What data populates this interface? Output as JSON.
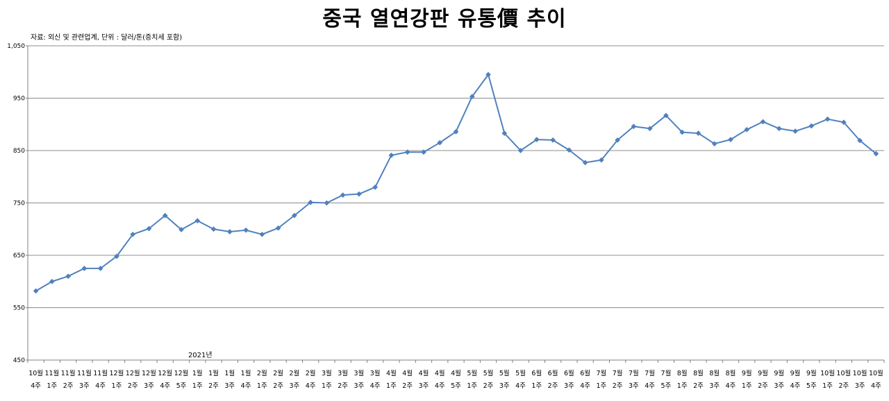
{
  "chart_data": {
    "type": "line",
    "title": "중국 열연강판 유통價 추이",
    "source_note": "자료: 외신 및 관련업계, 단위 : 달러/톤(증치세 포함)",
    "year_annotation": "2021년",
    "ylim": [
      450,
      1050
    ],
    "yticks": [
      450,
      550,
      650,
      750,
      850,
      950,
      1050
    ],
    "ytick_labels": [
      "450",
      "550",
      "650",
      "750",
      "850",
      "950",
      "1,050"
    ],
    "grid": true,
    "line_color": "#4f81bd",
    "categories": [
      [
        "10월",
        "4주"
      ],
      [
        "11월",
        "1주"
      ],
      [
        "11월",
        "2주"
      ],
      [
        "11월",
        "3주"
      ],
      [
        "11월",
        "4주"
      ],
      [
        "12월",
        "1주"
      ],
      [
        "12월",
        "2주"
      ],
      [
        "12월",
        "3주"
      ],
      [
        "12월",
        "4주"
      ],
      [
        "12월",
        "5주"
      ],
      [
        "1월",
        "1주"
      ],
      [
        "1월",
        "2주"
      ],
      [
        "1월",
        "3주"
      ],
      [
        "1월",
        "4주"
      ],
      [
        "2월",
        "1주"
      ],
      [
        "2월",
        "2주"
      ],
      [
        "2월",
        "3주"
      ],
      [
        "2월",
        "4주"
      ],
      [
        "3월",
        "1주"
      ],
      [
        "3월",
        "2주"
      ],
      [
        "3월",
        "3주"
      ],
      [
        "3월",
        "4주"
      ],
      [
        "4월",
        "1주"
      ],
      [
        "4월",
        "2주"
      ],
      [
        "4월",
        "3주"
      ],
      [
        "4월",
        "4주"
      ],
      [
        "4월",
        "5주"
      ],
      [
        "5월",
        "1주"
      ],
      [
        "5월",
        "2주"
      ],
      [
        "5월",
        "3주"
      ],
      [
        "5월",
        "4주"
      ],
      [
        "6월",
        "1주"
      ],
      [
        "6월",
        "2주"
      ],
      [
        "6월",
        "3주"
      ],
      [
        "6월",
        "4주"
      ],
      [
        "7월",
        "1주"
      ],
      [
        "7월",
        "2주"
      ],
      [
        "7월",
        "3주"
      ],
      [
        "7월",
        "4주"
      ],
      [
        "7월",
        "5주"
      ],
      [
        "8월",
        "1주"
      ],
      [
        "8월",
        "2주"
      ],
      [
        "8월",
        "3주"
      ],
      [
        "8월",
        "4주"
      ],
      [
        "9월",
        "1주"
      ],
      [
        "9월",
        "2주"
      ],
      [
        "9월",
        "3주"
      ],
      [
        "9월",
        "4주"
      ],
      [
        "9월",
        "5주"
      ],
      [
        "10월",
        "1주"
      ],
      [
        "10월",
        "2주"
      ],
      [
        "10월",
        "3주"
      ],
      [
        "10월",
        "4주"
      ]
    ],
    "values": [
      582,
      600,
      610,
      625,
      625,
      648,
      690,
      701,
      726,
      699,
      716,
      700,
      695,
      698,
      690,
      702,
      726,
      751,
      750,
      765,
      767,
      780,
      841,
      847,
      847,
      865,
      886,
      953,
      995,
      883,
      850,
      871,
      870,
      851,
      827,
      832,
      870,
      896,
      892,
      917,
      885,
      883,
      863,
      871,
      890,
      905,
      892,
      887,
      897,
      910,
      904,
      869,
      844
    ]
  }
}
